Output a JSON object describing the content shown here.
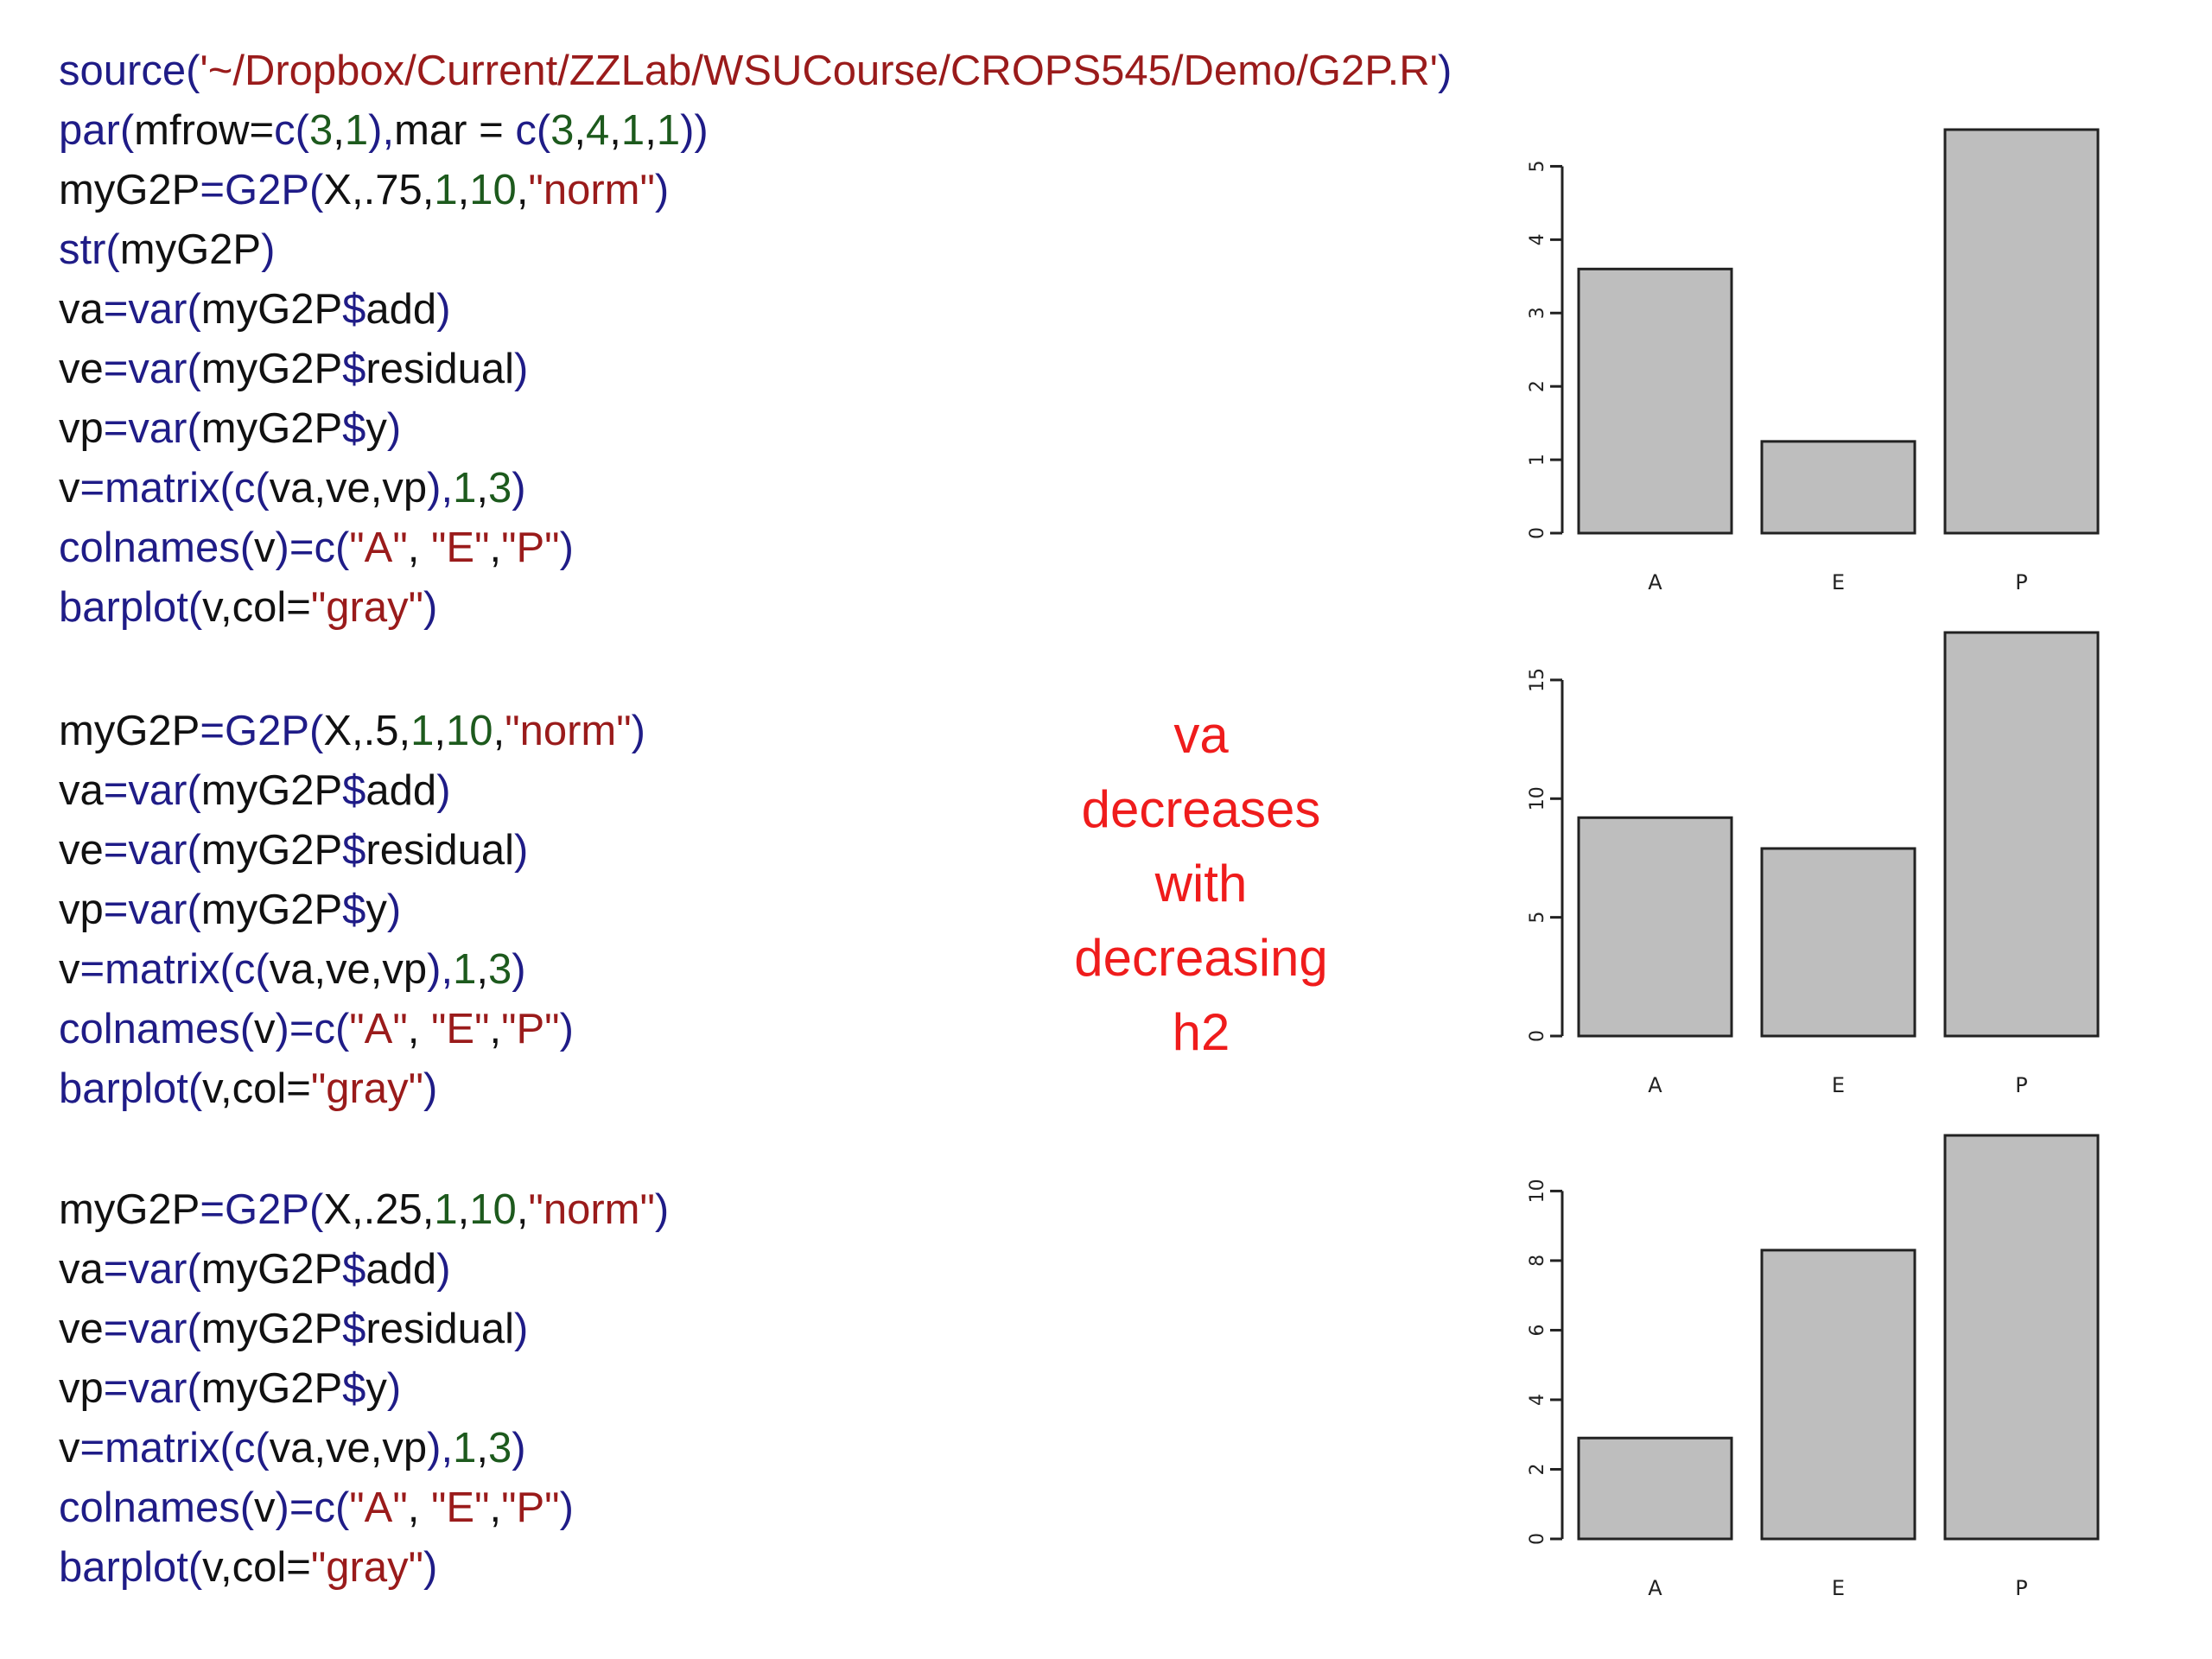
{
  "code_blocks": [
    {
      "lines": [
        [
          {
            "t": "source(",
            "c": "fn"
          },
          {
            "t": "'~/Dropbox/Current/ZZLab/WSUCourse/CROPS545/Demo/G2P.R'",
            "c": "str"
          },
          {
            "t": ")",
            "c": "fn"
          }
        ],
        [
          {
            "t": "par(",
            "c": "fn"
          },
          {
            "t": "mfrow=",
            "c": "plain"
          },
          {
            "t": "c(",
            "c": "fn"
          },
          {
            "t": "3",
            "c": "num"
          },
          {
            "t": ",",
            "c": "plain"
          },
          {
            "t": "1",
            "c": "num"
          },
          {
            "t": "),",
            "c": "fn"
          },
          {
            "t": "mar = ",
            "c": "plain"
          },
          {
            "t": "c(",
            "c": "fn"
          },
          {
            "t": "3",
            "c": "num"
          },
          {
            "t": ",",
            "c": "plain"
          },
          {
            "t": "4",
            "c": "num"
          },
          {
            "t": ",",
            "c": "plain"
          },
          {
            "t": "1",
            "c": "num"
          },
          {
            "t": ",",
            "c": "plain"
          },
          {
            "t": "1",
            "c": "num"
          },
          {
            "t": "))",
            "c": "fn"
          }
        ],
        [
          {
            "t": "myG2P",
            "c": "plain"
          },
          {
            "t": "=",
            "c": "op"
          },
          {
            "t": "G2P(",
            "c": "fn"
          },
          {
            "t": "X,.75,",
            "c": "plain"
          },
          {
            "t": "1",
            "c": "num"
          },
          {
            "t": ",",
            "c": "plain"
          },
          {
            "t": "10",
            "c": "num"
          },
          {
            "t": ",",
            "c": "plain"
          },
          {
            "t": "\"norm\"",
            "c": "str"
          },
          {
            "t": ")",
            "c": "fn"
          }
        ],
        [
          {
            "t": "str(",
            "c": "fn"
          },
          {
            "t": "myG2P",
            "c": "plain"
          },
          {
            "t": ")",
            "c": "fn"
          }
        ],
        [
          {
            "t": "va",
            "c": "plain"
          },
          {
            "t": "=var(",
            "c": "fn"
          },
          {
            "t": "myG2P",
            "c": "plain"
          },
          {
            "t": "$",
            "c": "op"
          },
          {
            "t": "add",
            "c": "plain"
          },
          {
            "t": ")",
            "c": "fn"
          }
        ],
        [
          {
            "t": "ve",
            "c": "plain"
          },
          {
            "t": "=var(",
            "c": "fn"
          },
          {
            "t": "myG2P",
            "c": "plain"
          },
          {
            "t": "$",
            "c": "op"
          },
          {
            "t": "residual",
            "c": "plain"
          },
          {
            "t": ")",
            "c": "fn"
          }
        ],
        [
          {
            "t": "vp",
            "c": "plain"
          },
          {
            "t": "=var(",
            "c": "fn"
          },
          {
            "t": "myG2P",
            "c": "plain"
          },
          {
            "t": "$",
            "c": "op"
          },
          {
            "t": "y",
            "c": "plain"
          },
          {
            "t": ")",
            "c": "fn"
          }
        ],
        [
          {
            "t": "v",
            "c": "plain"
          },
          {
            "t": "=matrix(c(",
            "c": "fn"
          },
          {
            "t": "va,ve,vp",
            "c": "plain"
          },
          {
            "t": "),",
            "c": "fn"
          },
          {
            "t": "1",
            "c": "num"
          },
          {
            "t": ",",
            "c": "plain"
          },
          {
            "t": "3",
            "c": "num"
          },
          {
            "t": ")",
            "c": "fn"
          }
        ],
        [
          {
            "t": "colnames(",
            "c": "fn"
          },
          {
            "t": "v",
            "c": "plain"
          },
          {
            "t": ")=c(",
            "c": "fn"
          },
          {
            "t": "\"A\"",
            "c": "str"
          },
          {
            "t": ", ",
            "c": "plain"
          },
          {
            "t": "\"E\"",
            "c": "str"
          },
          {
            "t": ",",
            "c": "plain"
          },
          {
            "t": "\"P\"",
            "c": "str"
          },
          {
            "t": ")",
            "c": "fn"
          }
        ],
        [
          {
            "t": "barplot(",
            "c": "fn"
          },
          {
            "t": "v,col=",
            "c": "plain"
          },
          {
            "t": "\"gray\"",
            "c": "str"
          },
          {
            "t": ")",
            "c": "fn"
          }
        ]
      ]
    },
    {
      "lines": [
        [
          {
            "t": "myG2P",
            "c": "plain"
          },
          {
            "t": "=",
            "c": "op"
          },
          {
            "t": "G2P(",
            "c": "fn"
          },
          {
            "t": "X,.5,",
            "c": "plain"
          },
          {
            "t": "1",
            "c": "num"
          },
          {
            "t": ",",
            "c": "plain"
          },
          {
            "t": "10",
            "c": "num"
          },
          {
            "t": ",",
            "c": "plain"
          },
          {
            "t": "\"norm\"",
            "c": "str"
          },
          {
            "t": ")",
            "c": "fn"
          }
        ],
        [
          {
            "t": "va",
            "c": "plain"
          },
          {
            "t": "=var(",
            "c": "fn"
          },
          {
            "t": "myG2P",
            "c": "plain"
          },
          {
            "t": "$",
            "c": "op"
          },
          {
            "t": "add",
            "c": "plain"
          },
          {
            "t": ")",
            "c": "fn"
          }
        ],
        [
          {
            "t": "ve",
            "c": "plain"
          },
          {
            "t": "=var(",
            "c": "fn"
          },
          {
            "t": "myG2P",
            "c": "plain"
          },
          {
            "t": "$",
            "c": "op"
          },
          {
            "t": "residual",
            "c": "plain"
          },
          {
            "t": ")",
            "c": "fn"
          }
        ],
        [
          {
            "t": "vp",
            "c": "plain"
          },
          {
            "t": "=var(",
            "c": "fn"
          },
          {
            "t": "myG2P",
            "c": "plain"
          },
          {
            "t": "$",
            "c": "op"
          },
          {
            "t": "y",
            "c": "plain"
          },
          {
            "t": ")",
            "c": "fn"
          }
        ],
        [
          {
            "t": "v",
            "c": "plain"
          },
          {
            "t": "=matrix(c(",
            "c": "fn"
          },
          {
            "t": "va,ve,vp",
            "c": "plain"
          },
          {
            "t": "),",
            "c": "fn"
          },
          {
            "t": "1",
            "c": "num"
          },
          {
            "t": ",",
            "c": "plain"
          },
          {
            "t": "3",
            "c": "num"
          },
          {
            "t": ")",
            "c": "fn"
          }
        ],
        [
          {
            "t": "colnames(",
            "c": "fn"
          },
          {
            "t": "v",
            "c": "plain"
          },
          {
            "t": ")=c(",
            "c": "fn"
          },
          {
            "t": "\"A\"",
            "c": "str"
          },
          {
            "t": ", ",
            "c": "plain"
          },
          {
            "t": "\"E\"",
            "c": "str"
          },
          {
            "t": ",",
            "c": "plain"
          },
          {
            "t": "\"P\"",
            "c": "str"
          },
          {
            "t": ")",
            "c": "fn"
          }
        ],
        [
          {
            "t": "barplot(",
            "c": "fn"
          },
          {
            "t": "v,col=",
            "c": "plain"
          },
          {
            "t": "\"gray\"",
            "c": "str"
          },
          {
            "t": ")",
            "c": "fn"
          }
        ]
      ]
    },
    {
      "lines": [
        [
          {
            "t": "myG2P",
            "c": "plain"
          },
          {
            "t": "=",
            "c": "op"
          },
          {
            "t": "G2P(",
            "c": "fn"
          },
          {
            "t": "X,.25,",
            "c": "plain"
          },
          {
            "t": "1",
            "c": "num"
          },
          {
            "t": ",",
            "c": "plain"
          },
          {
            "t": "10",
            "c": "num"
          },
          {
            "t": ",",
            "c": "plain"
          },
          {
            "t": "\"norm\"",
            "c": "str"
          },
          {
            "t": ")",
            "c": "fn"
          }
        ],
        [
          {
            "t": "va",
            "c": "plain"
          },
          {
            "t": "=var(",
            "c": "fn"
          },
          {
            "t": "myG2P",
            "c": "plain"
          },
          {
            "t": "$",
            "c": "op"
          },
          {
            "t": "add",
            "c": "plain"
          },
          {
            "t": ")",
            "c": "fn"
          }
        ],
        [
          {
            "t": "ve",
            "c": "plain"
          },
          {
            "t": "=var(",
            "c": "fn"
          },
          {
            "t": "myG2P",
            "c": "plain"
          },
          {
            "t": "$",
            "c": "op"
          },
          {
            "t": "residual",
            "c": "plain"
          },
          {
            "t": ")",
            "c": "fn"
          }
        ],
        [
          {
            "t": "vp",
            "c": "plain"
          },
          {
            "t": "=var(",
            "c": "fn"
          },
          {
            "t": "myG2P",
            "c": "plain"
          },
          {
            "t": "$",
            "c": "op"
          },
          {
            "t": "y",
            "c": "plain"
          },
          {
            "t": ")",
            "c": "fn"
          }
        ],
        [
          {
            "t": "v",
            "c": "plain"
          },
          {
            "t": "=matrix(c(",
            "c": "fn"
          },
          {
            "t": "va,ve,vp",
            "c": "plain"
          },
          {
            "t": "),",
            "c": "fn"
          },
          {
            "t": "1",
            "c": "num"
          },
          {
            "t": ",",
            "c": "plain"
          },
          {
            "t": "3",
            "c": "num"
          },
          {
            "t": ")",
            "c": "fn"
          }
        ],
        [
          {
            "t": "colnames(",
            "c": "fn"
          },
          {
            "t": "v",
            "c": "plain"
          },
          {
            "t": ")=c(",
            "c": "fn"
          },
          {
            "t": "\"A\"",
            "c": "str"
          },
          {
            "t": ", ",
            "c": "plain"
          },
          {
            "t": "\"E\"",
            "c": "str"
          },
          {
            "t": ",",
            "c": "plain"
          },
          {
            "t": "\"P\"",
            "c": "str"
          },
          {
            "t": ")",
            "c": "fn"
          }
        ],
        [
          {
            "t": "barplot(",
            "c": "fn"
          },
          {
            "t": "v,col=",
            "c": "plain"
          },
          {
            "t": "\"gray\"",
            "c": "str"
          },
          {
            "t": ")",
            "c": "fn"
          }
        ]
      ]
    }
  ],
  "note": {
    "lines": [
      "va",
      "decreases",
      "with",
      "decreasing",
      "h2"
    ],
    "color": "#ef1c1c"
  },
  "colors": {
    "function": "#1f1c87",
    "string": "#9a1b1b",
    "number": "#1d5a1d",
    "plain": "#111111",
    "bar_fill": "#bebebe",
    "bar_stroke": "#222222"
  },
  "chart_data": [
    {
      "type": "bar",
      "categories": [
        "A",
        "E",
        "P"
      ],
      "values": [
        3.6,
        1.25,
        5.5
      ],
      "yticks": [
        0,
        1,
        2,
        3,
        4,
        5
      ],
      "ylim": [
        0,
        5.5
      ],
      "grid": false
    },
    {
      "type": "bar",
      "categories": [
        "A",
        "E",
        "P"
      ],
      "values": [
        9.2,
        7.9,
        17
      ],
      "yticks": [
        0,
        5,
        10,
        15
      ],
      "ylim": [
        0,
        17
      ],
      "grid": false
    },
    {
      "type": "bar",
      "categories": [
        "A",
        "E",
        "P"
      ],
      "values": [
        2.9,
        8.3,
        11.6
      ],
      "yticks": [
        0,
        2,
        4,
        6,
        8,
        10
      ],
      "ylim": [
        0,
        11.6
      ],
      "grid": false
    }
  ]
}
